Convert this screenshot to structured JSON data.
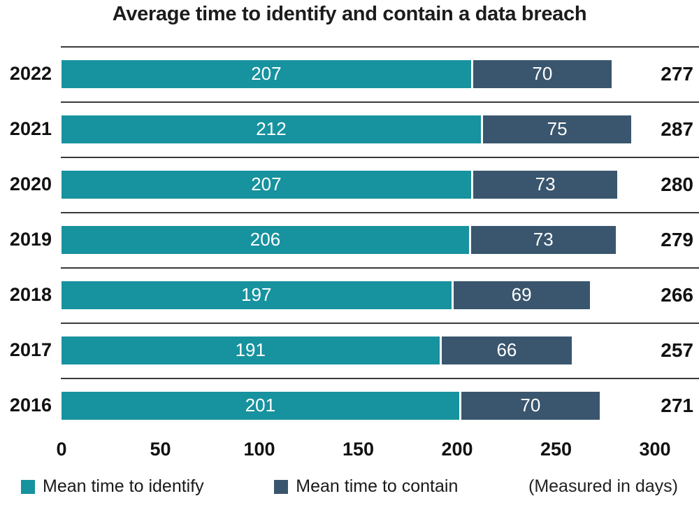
{
  "title": "Average time to identify and contain a data breach",
  "colors": {
    "identify": "#17929F",
    "contain": "#3A566E",
    "separator": "#3A3A3A",
    "text": "#1A1A1A",
    "bar_label": "#FFFFFF"
  },
  "chart_data": {
    "type": "bar",
    "orientation": "horizontal",
    "stacked": true,
    "title": "Average time to identify and contain a data breach",
    "categories": [
      "2022",
      "2021",
      "2020",
      "2019",
      "2018",
      "2017",
      "2016"
    ],
    "series": [
      {
        "name": "Mean time to identify",
        "values": [
          207,
          212,
          207,
          206,
          197,
          191,
          201
        ]
      },
      {
        "name": "Mean time to contain",
        "values": [
          70,
          75,
          73,
          73,
          69,
          66,
          70
        ]
      }
    ],
    "totals": [
      277,
      287,
      280,
      279,
      266,
      257,
      271
    ],
    "xlim": [
      0,
      300
    ],
    "x_ticks": [
      0,
      50,
      100,
      150,
      200,
      250,
      300
    ],
    "unit": "days",
    "grid": false,
    "legend_position": "bottom"
  },
  "legend": {
    "identify": "Mean time to identify",
    "contain": "Mean time to contain",
    "note": "(Measured in days)"
  }
}
